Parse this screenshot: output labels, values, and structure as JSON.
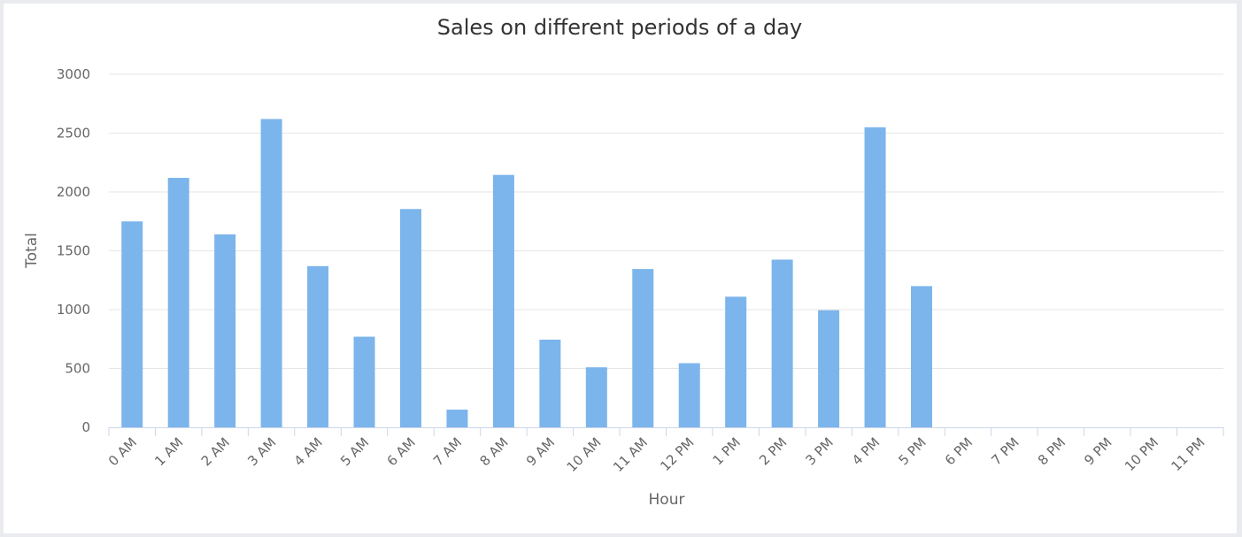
{
  "chart_data": {
    "type": "bar",
    "title": "Sales on different periods of a day",
    "xlabel": "Hour",
    "ylabel": "Total",
    "ylim": [
      0,
      3000
    ],
    "yticks": [
      0,
      500,
      1000,
      1500,
      2000,
      2500,
      3000
    ],
    "grid": true,
    "legend": "none",
    "bar_color": "#7cb5ec",
    "categories": [
      "0 AM",
      "1 AM",
      "2 AM",
      "3 AM",
      "4 AM",
      "5 AM",
      "6 AM",
      "7 AM",
      "8 AM",
      "9 AM",
      "10 AM",
      "11 AM",
      "12 PM",
      "1 PM",
      "2 PM",
      "3 PM",
      "4 PM",
      "5 PM",
      "6 PM",
      "7 PM",
      "8 PM",
      "9 PM",
      "10 PM",
      "11 PM"
    ],
    "values": [
      1750,
      2120,
      1640,
      2620,
      1370,
      770,
      1855,
      150,
      2145,
      745,
      510,
      1345,
      545,
      1110,
      1425,
      995,
      2550,
      1200,
      0,
      0,
      0,
      0,
      0,
      0
    ]
  }
}
